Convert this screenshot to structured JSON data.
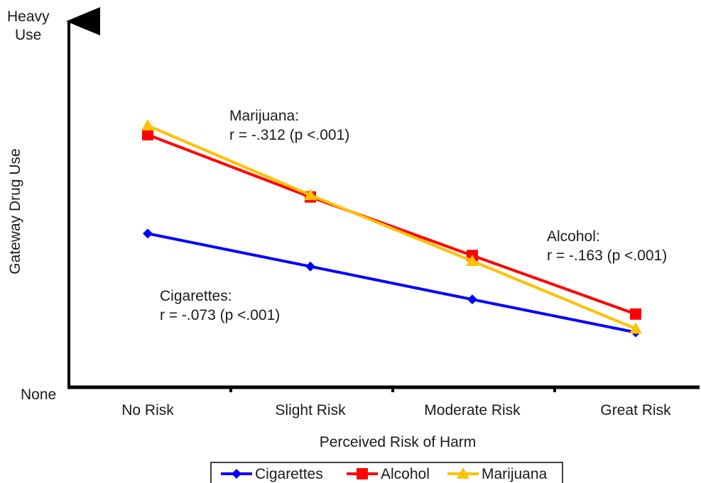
{
  "chart_data": {
    "type": "line",
    "title": "",
    "xlabel": "Perceived Risk of Harm",
    "ylabel": "Gateway Drug Use",
    "y_top_label_lines": [
      "Heavy",
      "Use"
    ],
    "y_bottom_label": "None",
    "categories": [
      "No Risk",
      "Slight Risk",
      "Moderate Risk",
      "Great Risk"
    ],
    "ylim": [
      0,
      100
    ],
    "grid": false,
    "legend_position": "bottom",
    "series": [
      {
        "name": "Cigarettes",
        "color": "#0000ff",
        "marker": "diamond",
        "values": [
          42,
          33,
          24,
          15
        ]
      },
      {
        "name": "Alcohol",
        "color": "#ff0000",
        "marker": "square",
        "values": [
          69,
          52,
          36,
          20
        ]
      },
      {
        "name": "Marijuana",
        "color": "#ffc000",
        "marker": "triangle",
        "values": [
          71.5,
          52.5,
          34.5,
          16
        ]
      }
    ],
    "annotations": [
      {
        "series": "Marijuana",
        "lines": [
          "Marijuana:",
          "r = -.312 (p <.001)"
        ]
      },
      {
        "series": "Alcohol",
        "lines": [
          "Alcohol:",
          "r = -.163 (p <.001)"
        ]
      },
      {
        "series": "Cigarettes",
        "lines": [
          "Cigarettes:",
          "r = -.073 (p <.001)"
        ]
      }
    ]
  }
}
